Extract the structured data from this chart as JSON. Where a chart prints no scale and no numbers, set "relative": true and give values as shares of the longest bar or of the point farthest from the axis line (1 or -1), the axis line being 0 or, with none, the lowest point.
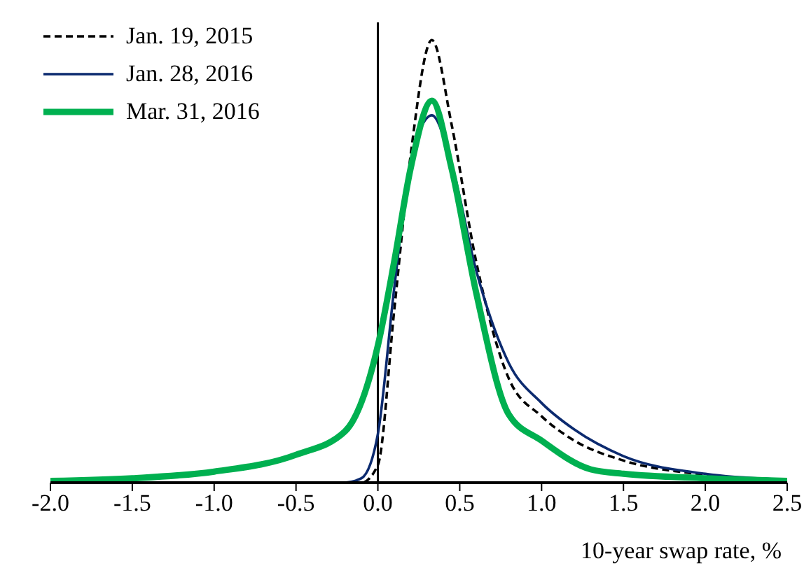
{
  "chart_data": {
    "type": "line",
    "relative": true,
    "xlabel": "10-year swap rate, %",
    "xlim": [
      -2.0,
      2.5
    ],
    "xticks": [
      {
        "value": -2,
        "label": "-2.0"
      },
      {
        "value": -1.5,
        "label": "-1.5"
      },
      {
        "value": -1,
        "label": "-1.0"
      },
      {
        "value": -0.5,
        "label": "-0.5"
      },
      {
        "value": 0,
        "label": "0.0"
      },
      {
        "value": 0.5,
        "label": "0.5"
      },
      {
        "value": 1,
        "label": "1.0"
      },
      {
        "value": 1.5,
        "label": "1.5"
      },
      {
        "value": 2,
        "label": "2.0"
      },
      {
        "value": 2.5,
        "label": "2.5"
      }
    ],
    "series": [
      {
        "name": "Jan. 19, 2015",
        "color": "#000000",
        "line_style": "dashed",
        "x": [
          -2,
          -1,
          -0.5,
          -0.2,
          -0.1,
          0,
          0.1,
          0.2,
          0.33,
          0.45,
          0.6,
          0.8,
          1.0,
          1.2,
          1.5,
          2.0,
          2.5
        ],
        "values": [
          0,
          0,
          0,
          0,
          0,
          0.04,
          0.39,
          0.74,
          1.0,
          0.81,
          0.5,
          0.235,
          0.15,
          0.095,
          0.05,
          0.018,
          0.007
        ]
      },
      {
        "name": "Jan. 28, 2016",
        "color": "#0b2a6f",
        "line_style": "solid",
        "x": [
          -0.2,
          -0.1,
          0,
          0.1,
          0.2,
          0.33,
          0.45,
          0.6,
          0.8,
          1.0,
          1.2,
          1.5,
          2.0,
          2.5
        ],
        "values": [
          0,
          0.01,
          0.11,
          0.44,
          0.72,
          0.83,
          0.72,
          0.48,
          0.27,
          0.18,
          0.12,
          0.06,
          0.02,
          0.007
        ]
      },
      {
        "name": "Mar. 31, 2016",
        "color": "#00b050",
        "line_style": "solid",
        "x": [
          -2,
          -1.5,
          -1,
          -0.5,
          -0.2,
          0,
          0.1,
          0.2,
          0.33,
          0.45,
          0.6,
          0.8,
          1.0,
          1.3,
          1.5,
          2.0,
          2.5
        ],
        "values": [
          0.004,
          0.01,
          0.025,
          0.063,
          0.116,
          0.31,
          0.5,
          0.71,
          0.863,
          0.71,
          0.43,
          0.154,
          0.095,
          0.03,
          0.02,
          0.01,
          0.004
        ]
      }
    ],
    "ref_lines": [
      {
        "axis": "x",
        "value": 0,
        "color": "#000000"
      }
    ],
    "legend": "top left",
    "marker": "none"
  }
}
